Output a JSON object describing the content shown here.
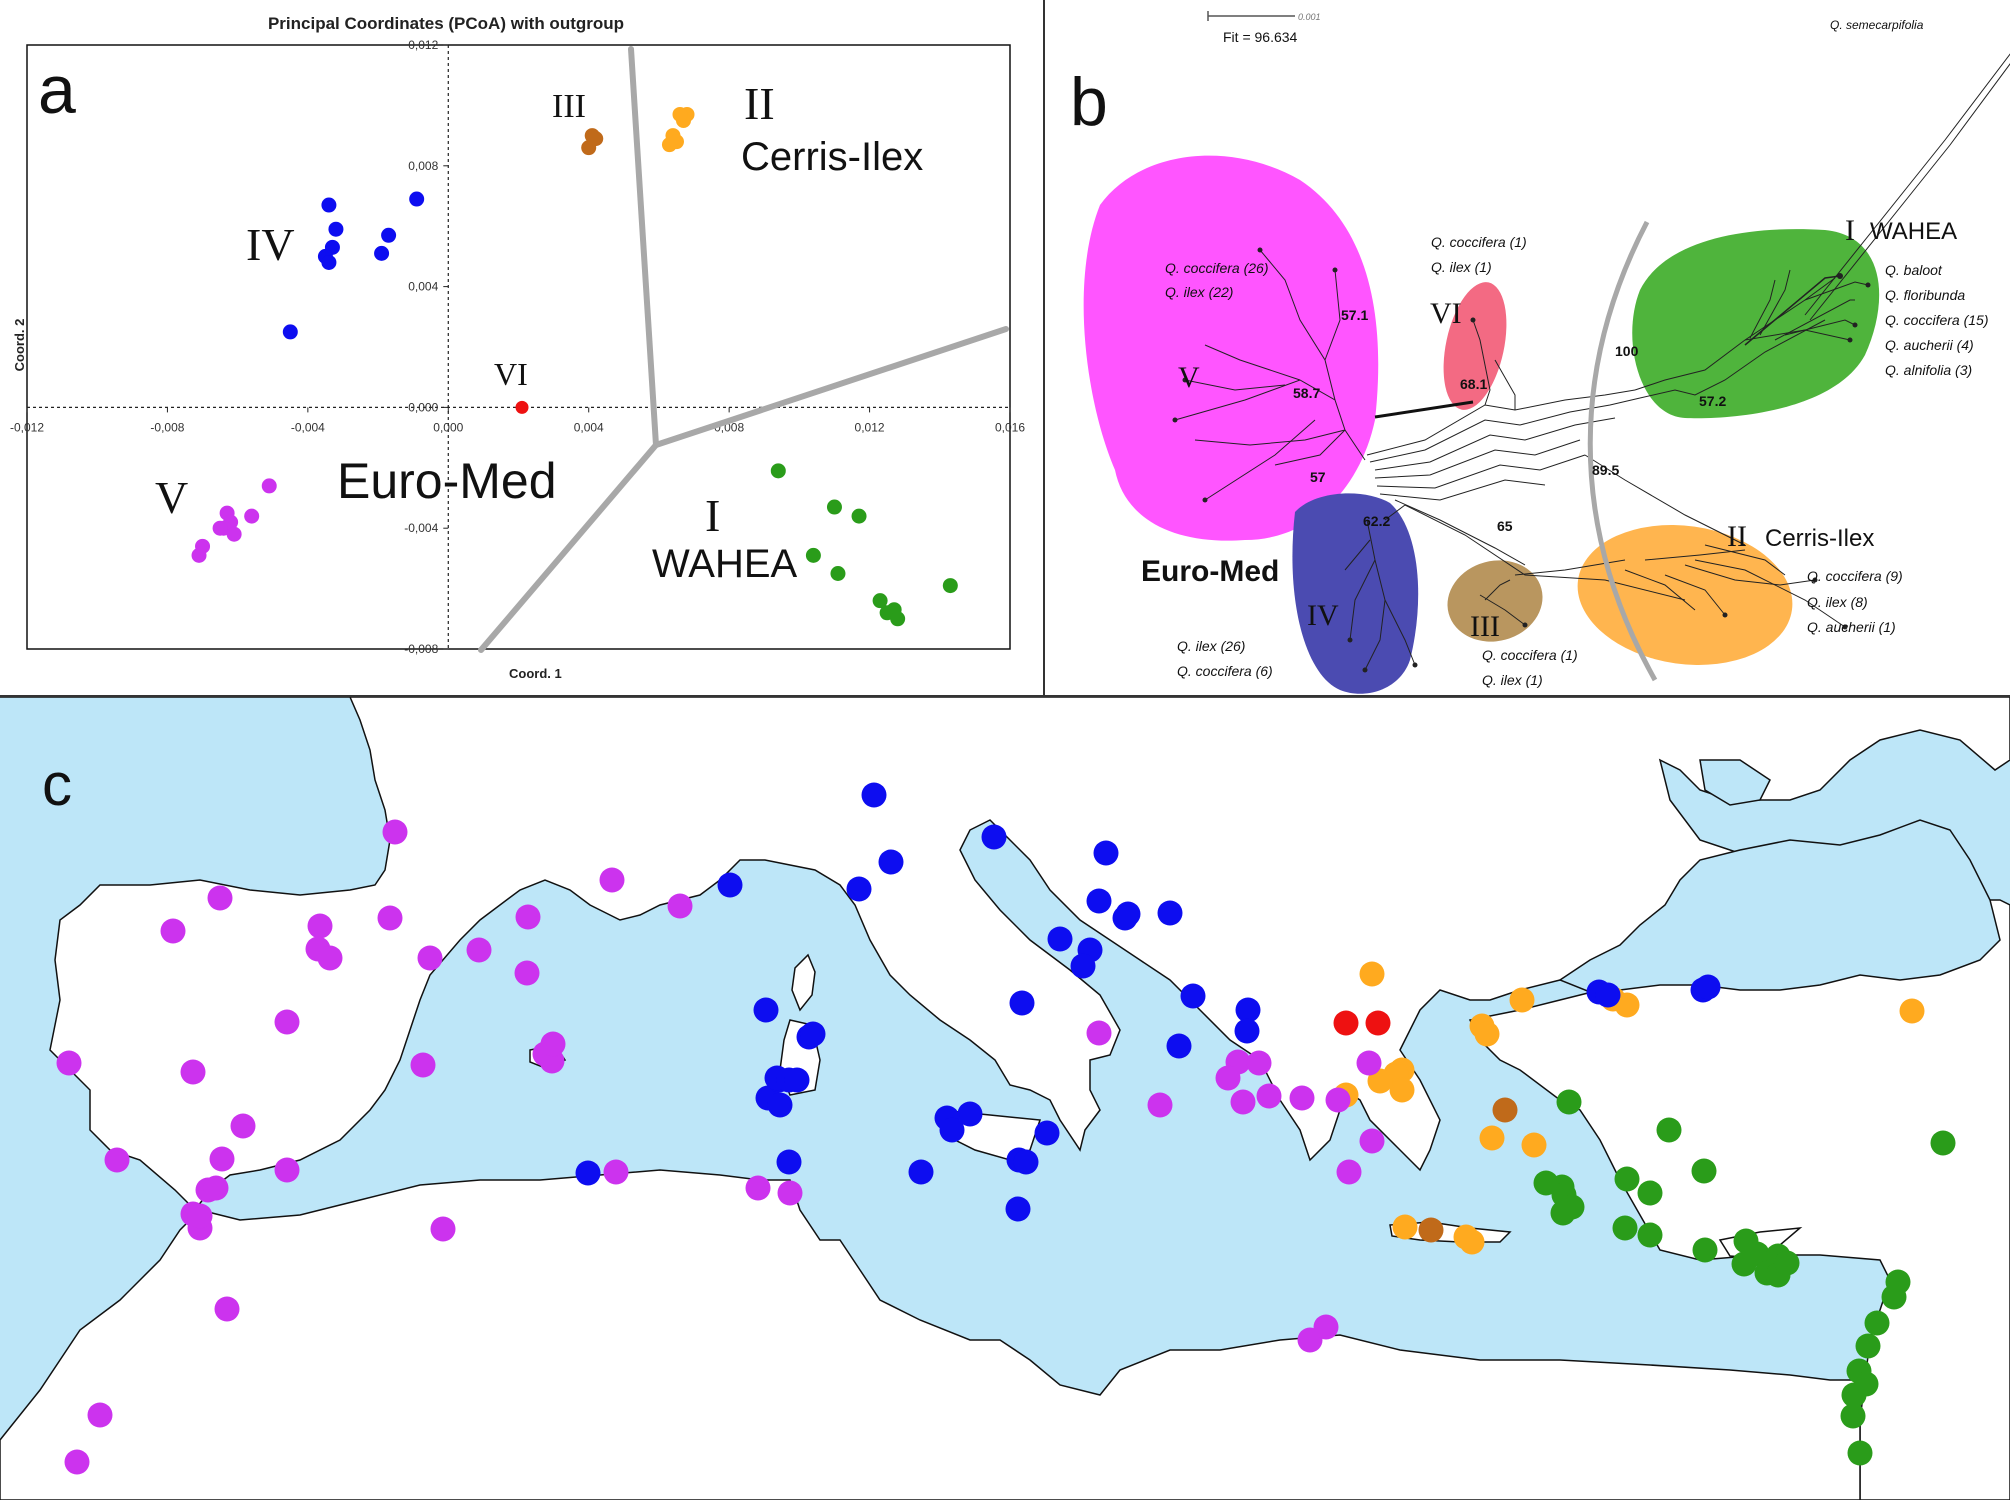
{
  "colors": {
    "I": "#2a9c1a",
    "II": "#ffaa1f",
    "III": "#c06a1a",
    "IV": "#0d0df0",
    "V": "#cc33ee",
    "VI": "#ee1111",
    "sea": "#bde6f8",
    "hull_V": "#ff55ff",
    "hull_VI": "#f36a83",
    "hull_I": "#4fb43c",
    "hull_II": "#ffb54f",
    "hull_III": "#b9965f",
    "hull_IV": "#4b4bb1"
  },
  "panel_a": {
    "letter": "a",
    "group_labels": {
      "III": "III",
      "II": "II",
      "cerris": "Cerris-Ilex",
      "IV": "IV",
      "VI": "VI",
      "V": "V",
      "euromed": "Euro-Med",
      "I": "I",
      "wahea": "WAHEA"
    }
  },
  "panel_b": {
    "letter": "b",
    "scale_value": "0.001",
    "fit": "Fit = 96.634",
    "outgroup": "Q. semecarpifolia",
    "euromed": "Euro-Med",
    "clusters": {
      "I": {
        "roman": "I",
        "name": "WAHEA",
        "species": [
          "Q. baloot",
          "Q. floribunda",
          "Q. coccifera (15)",
          "Q. aucherii (4)",
          "Q. alnifolia (3)"
        ]
      },
      "II": {
        "roman": "II",
        "name": "Cerris-Ilex",
        "species": [
          "Q. coccifera (9)",
          "Q. ilex (8)",
          "Q. aucherii (1)"
        ]
      },
      "III": {
        "roman": "III",
        "species": [
          "Q. coccifera (1)",
          "Q. ilex (1)"
        ]
      },
      "IV": {
        "roman": "IV",
        "species": [
          "Q. ilex (26)",
          "Q. coccifera (6)"
        ]
      },
      "V": {
        "roman": "V",
        "species": [
          "Q. coccifera (26)",
          "Q. ilex (22)"
        ]
      },
      "VI": {
        "roman": "VI",
        "species": [
          "Q. coccifera (1)",
          "Q. ilex (1)"
        ]
      }
    },
    "bootstrap": [
      "57.1",
      "58.7",
      "57",
      "62.2",
      "68.1",
      "65",
      "100",
      "57.2",
      "89.5"
    ]
  },
  "panel_c": {
    "letter": "c"
  },
  "chart_data": [
    {
      "type": "scatter",
      "title": "Principal Coordinates (PCoA) with outgroup",
      "xlabel": "Coord. 1",
      "ylabel": "Coord. 2",
      "xlim": [
        -0.012,
        0.016
      ],
      "ylim": [
        -0.008,
        0.012
      ],
      "xticks": [
        "-0,012",
        "-0,008",
        "-0,004",
        "0,000",
        "0,004",
        "0,008",
        "0,012",
        "0,016"
      ],
      "yticks": [
        "-0,008",
        "-0,004",
        "0,000",
        "0,004",
        "0,008",
        "0,012"
      ],
      "grid": false,
      "series": [
        {
          "name": "I",
          "points": [
            [
              0.0094,
              -0.0021
            ],
            [
              0.011,
              -0.0033
            ],
            [
              0.0117,
              -0.0036
            ],
            [
              0.0104,
              -0.0049
            ],
            [
              0.0111,
              -0.0055
            ],
            [
              0.0123,
              -0.0064
            ],
            [
              0.0125,
              -0.0068
            ],
            [
              0.0127,
              -0.0067
            ],
            [
              0.0128,
              -0.007
            ],
            [
              0.0143,
              -0.0059
            ]
          ]
        },
        {
          "name": "II",
          "points": [
            [
              0.0068,
              0.0097
            ],
            [
              0.0067,
              0.0095
            ],
            [
              0.0066,
              0.0097
            ],
            [
              0.0064,
              0.009
            ],
            [
              0.0063,
              0.0087
            ],
            [
              0.0065,
              0.0088
            ]
          ]
        },
        {
          "name": "III",
          "points": [
            [
              0.0041,
              0.009
            ],
            [
              0.004,
              0.0086
            ],
            [
              0.0042,
              0.0089
            ]
          ]
        },
        {
          "name": "IV",
          "points": [
            [
              -0.0034,
              0.0067
            ],
            [
              -0.0032,
              0.0059
            ],
            [
              -0.0033,
              0.0053
            ],
            [
              -0.0035,
              0.005
            ],
            [
              -0.0034,
              0.0048
            ],
            [
              -0.0017,
              0.0057
            ],
            [
              -0.0019,
              0.0051
            ],
            [
              -0.0009,
              0.0069
            ],
            [
              -0.0045,
              0.0025
            ]
          ]
        },
        {
          "name": "V",
          "points": [
            [
              -0.0051,
              -0.0026
            ],
            [
              -0.0056,
              -0.0036
            ],
            [
              -0.0063,
              -0.0035
            ],
            [
              -0.0062,
              -0.0038
            ],
            [
              -0.0064,
              -0.004
            ],
            [
              -0.0065,
              -0.004
            ],
            [
              -0.0061,
              -0.0042
            ],
            [
              -0.007,
              -0.0046
            ],
            [
              -0.0071,
              -0.0049
            ]
          ]
        },
        {
          "name": "VI",
          "points": [
            [
              0.0021,
              0.0
            ]
          ]
        }
      ]
    },
    {
      "type": "scatter",
      "series": [
        {
          "name": "I",
          "points": [
            [
              1569,
              1102
            ],
            [
              1562,
              1187
            ],
            [
              1669,
              1130
            ],
            [
              1704,
              1171
            ],
            [
              1943,
              1143
            ],
            [
              1546,
              1183
            ],
            [
              1564,
              1195
            ],
            [
              1627,
              1179
            ],
            [
              1650,
              1193
            ],
            [
              1572,
              1207
            ],
            [
              1563,
              1213
            ],
            [
              1625,
              1228
            ],
            [
              1650,
              1235
            ],
            [
              1705,
              1250
            ],
            [
              1746,
              1241
            ],
            [
              1744,
              1264
            ],
            [
              1757,
              1254
            ],
            [
              1767,
              1273
            ],
            [
              1778,
              1256
            ],
            [
              1778,
              1275
            ],
            [
              1787,
              1263
            ],
            [
              1898,
              1282
            ],
            [
              1894,
              1297
            ],
            [
              1877,
              1323
            ],
            [
              1868,
              1346
            ],
            [
              1859,
              1371
            ],
            [
              1866,
              1384
            ],
            [
              1854,
              1395
            ],
            [
              1853,
              1416
            ],
            [
              1860,
              1453
            ]
          ]
        },
        {
          "name": "II",
          "points": [
            [
              1372,
              974
            ],
            [
              1522,
              1000
            ],
            [
              1613,
              999
            ],
            [
              1627,
              1005
            ],
            [
              1912,
              1011
            ],
            [
              1482,
              1026
            ],
            [
              1487,
              1034
            ],
            [
              1402,
              1070
            ],
            [
              1396,
              1074
            ],
            [
              1346,
              1095
            ],
            [
              1402,
              1090
            ],
            [
              1380,
              1081
            ],
            [
              1492,
              1138
            ],
            [
              1534,
              1145
            ],
            [
              1405,
              1227
            ],
            [
              1466,
              1237
            ],
            [
              1472,
              1242
            ]
          ]
        },
        {
          "name": "III",
          "points": [
            [
              1505,
              1110
            ],
            [
              1431,
              1230
            ]
          ]
        },
        {
          "name": "IV",
          "points": [
            [
              874,
              795
            ],
            [
              891,
              862
            ],
            [
              994,
              837
            ],
            [
              859,
              889
            ],
            [
              730,
              885
            ],
            [
              1106,
              853
            ],
            [
              1128,
              914
            ],
            [
              1099,
              901
            ],
            [
              1170,
              913
            ],
            [
              1125,
              918
            ],
            [
              1060,
              939
            ],
            [
              1090,
              950
            ],
            [
              1022,
              1003
            ],
            [
              1248,
              1010
            ],
            [
              1083,
              966
            ],
            [
              1193,
              996
            ],
            [
              1247,
              1031
            ],
            [
              1599,
              992
            ],
            [
              1703,
              990
            ],
            [
              1708,
              987
            ],
            [
              1608,
              995
            ],
            [
              1179,
              1046
            ],
            [
              766,
              1010
            ],
            [
              809,
              1037
            ],
            [
              768,
              1098
            ],
            [
              813,
              1034
            ],
            [
              779,
              1080
            ],
            [
              777,
              1078
            ],
            [
              780,
              1105
            ],
            [
              789,
              1080
            ],
            [
              797,
              1080
            ],
            [
              970,
              1114
            ],
            [
              947,
              1118
            ],
            [
              952,
              1130
            ],
            [
              1047,
              1133
            ],
            [
              1019,
              1160
            ],
            [
              921,
              1172
            ],
            [
              1026,
              1162
            ],
            [
              588,
              1173
            ],
            [
              1018,
              1209
            ],
            [
              789,
              1162
            ]
          ]
        },
        {
          "name": "V",
          "points": [
            [
              395,
              832
            ],
            [
              220,
              898
            ],
            [
              173,
              931
            ],
            [
              320,
              926
            ],
            [
              390,
              918
            ],
            [
              612,
              880
            ],
            [
              680,
              906
            ],
            [
              528,
              917
            ],
            [
              318,
              949
            ],
            [
              330,
              958
            ],
            [
              430,
              958
            ],
            [
              479,
              950
            ],
            [
              527,
              973
            ],
            [
              287,
              1022
            ],
            [
              69,
              1063
            ],
            [
              193,
              1072
            ],
            [
              552,
              1061
            ],
            [
              423,
              1065
            ],
            [
              545,
              1054
            ],
            [
              243,
              1126
            ],
            [
              553,
              1044
            ],
            [
              1099,
              1033
            ],
            [
              1160,
              1105
            ],
            [
              1238,
              1062
            ],
            [
              1228,
              1078
            ],
            [
              1243,
              1102
            ],
            [
              1259,
              1063
            ],
            [
              1269,
              1096
            ],
            [
              1302,
              1098
            ],
            [
              1338,
              1100
            ],
            [
              1369,
              1063
            ],
            [
              1372,
              1141
            ],
            [
              1349,
              1172
            ],
            [
              117,
              1160
            ],
            [
              222,
              1159
            ],
            [
              287,
              1170
            ],
            [
              208,
              1190
            ],
            [
              193,
              1214
            ],
            [
              200,
              1228
            ],
            [
              216,
              1188
            ],
            [
              616,
              1172
            ],
            [
              758,
              1188
            ],
            [
              790,
              1193
            ],
            [
              200,
              1216
            ],
            [
              443,
              1229
            ],
            [
              227,
              1309
            ],
            [
              100,
              1415
            ],
            [
              77,
              1462
            ],
            [
              1310,
              1340
            ],
            [
              1326,
              1327
            ]
          ]
        },
        {
          "name": "VI",
          "points": [
            [
              1346,
              1023
            ],
            [
              1378,
              1023
            ]
          ]
        }
      ]
    }
  ]
}
